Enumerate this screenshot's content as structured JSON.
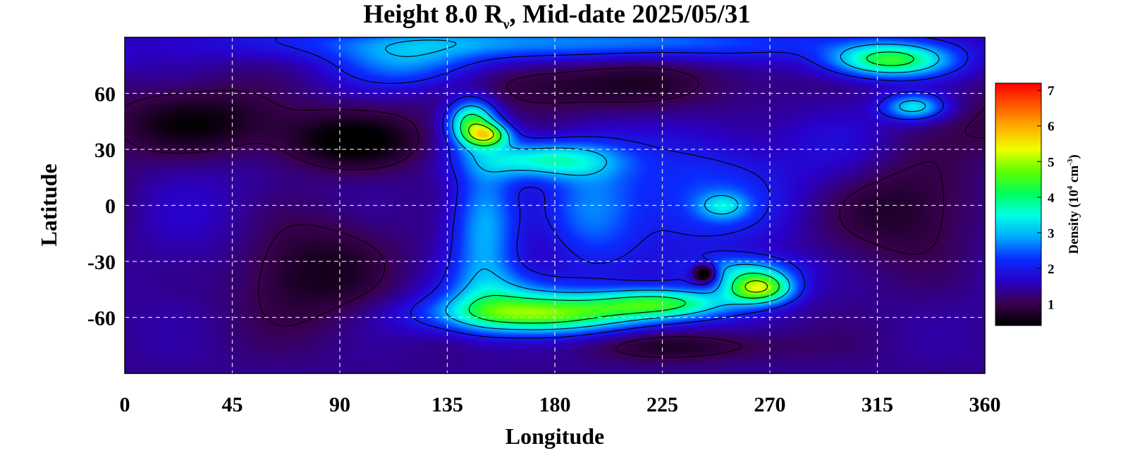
{
  "chart_data": {
    "type": "heatmap",
    "title": {
      "prefix": "Height 8.0 R",
      "subscript": "ν",
      "suffix": ", Mid-date 2025/05/31"
    },
    "xlabel": "Longitude",
    "ylabel": "Latitude",
    "xlim": [
      0,
      360
    ],
    "ylim": [
      -90,
      90
    ],
    "xticks": [
      "0",
      "45",
      "90",
      "135",
      "180",
      "225",
      "270",
      "315",
      "360"
    ],
    "yticks": [
      "60",
      "30",
      "0",
      "-30",
      "-60"
    ],
    "x_tick_values": [
      0,
      45,
      90,
      135,
      180,
      225,
      270,
      315,
      360
    ],
    "y_tick_values": [
      60,
      30,
      0,
      -30,
      -60
    ],
    "grid": true,
    "colorbar": {
      "label": {
        "pre": "Density (10",
        "sup1": "4",
        "mid": " cm",
        "sup2": "-3",
        "post": ")"
      },
      "ticks": [
        "1",
        "2",
        "3",
        "4",
        "5",
        "6",
        "7"
      ],
      "tick_values": [
        1,
        2,
        3,
        4,
        5,
        6,
        7
      ],
      "range": [
        0.4,
        7.2
      ],
      "colormap": [
        "#000000",
        "#3a0050",
        "#2a00c8",
        "#0a2cff",
        "#00a8ff",
        "#00ffe6",
        "#00ff5a",
        "#60ff00",
        "#f0ff00",
        "#ffb000",
        "#ff5a00",
        "#ff0000"
      ]
    },
    "background_value": 1.35,
    "features": [
      {
        "lon": 30,
        "lat": 45,
        "w": 35,
        "h": 18,
        "amp": -0.9
      },
      {
        "lon": 95,
        "lat": 35,
        "w": 30,
        "h": 15,
        "amp": -1.0
      },
      {
        "lon": 75,
        "lat": -35,
        "w": 33,
        "h": 30,
        "amp": -0.8
      },
      {
        "lon": 190,
        "lat": 65,
        "w": 65,
        "h": 15,
        "amp": -0.7
      },
      {
        "lon": 325,
        "lat": 0,
        "w": 35,
        "h": 30,
        "amp": -0.7
      },
      {
        "lon": 180,
        "lat": 88,
        "w": 130,
        "h": 10,
        "amp": 1.4
      },
      {
        "lon": 320,
        "lat": 78,
        "w": 25,
        "h": 9,
        "amp": 2.9
      },
      {
        "lon": 330,
        "lat": 53,
        "w": 13,
        "h": 7,
        "amp": 2.0
      },
      {
        "lon": 120,
        "lat": 75,
        "w": 32,
        "h": 14,
        "amp": 1.3
      },
      {
        "lon": 145,
        "lat": 45,
        "w": 10,
        "h": 12,
        "amp": 2.8
      },
      {
        "lon": 152,
        "lat": 38,
        "w": 9,
        "h": 6,
        "amp": 2.4
      },
      {
        "lon": 175,
        "lat": 25,
        "w": 28,
        "h": 10,
        "amp": 2.1
      },
      {
        "lon": 150,
        "lat": -10,
        "w": 14,
        "h": 40,
        "amp": 1.6
      },
      {
        "lon": 195,
        "lat": -2,
        "w": 20,
        "h": 35,
        "amp": 1.1
      },
      {
        "lon": 242,
        "lat": 5,
        "w": 38,
        "h": 32,
        "amp": 1.0
      },
      {
        "lon": 250,
        "lat": 0,
        "w": 10,
        "h": 7,
        "amp": 1.1
      },
      {
        "lon": 175,
        "lat": -58,
        "w": 45,
        "h": 10,
        "amp": 2.8
      },
      {
        "lon": 160,
        "lat": -48,
        "w": 28,
        "h": 15,
        "amp": 1.2
      },
      {
        "lon": 225,
        "lat": -52,
        "w": 30,
        "h": 8,
        "amp": 2.5
      },
      {
        "lon": 265,
        "lat": -44,
        "w": 14,
        "h": 8,
        "amp": 3.6
      },
      {
        "lon": 258,
        "lat": -34,
        "w": 22,
        "h": 8,
        "amp": 1.4
      },
      {
        "lon": 242,
        "lat": -36,
        "w": 5,
        "h": 5,
        "amp": -2.2
      },
      {
        "lon": 30,
        "lat": -10,
        "w": 40,
        "h": 40,
        "amp": 0.3
      },
      {
        "lon": 300,
        "lat": 30,
        "w": 25,
        "h": 25,
        "amp": 0.4
      },
      {
        "lon": 235,
        "lat": -75,
        "w": 45,
        "h": 8,
        "amp": -0.6
      }
    ]
  }
}
